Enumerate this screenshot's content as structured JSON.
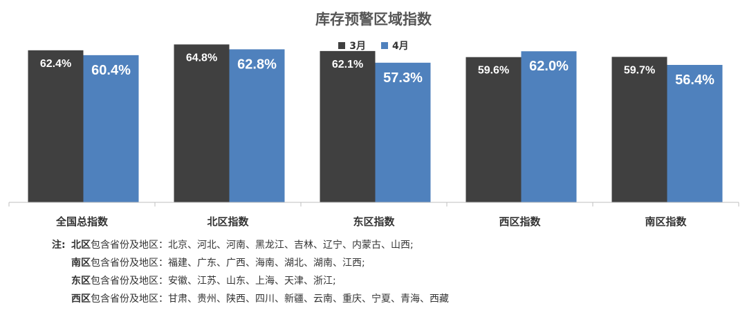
{
  "chart_data": {
    "type": "bar",
    "title": "库存预警区域指数",
    "categories": [
      "全国总指数",
      "北区指数",
      "东区指数",
      "西区指数",
      "南区指数"
    ],
    "series": [
      {
        "name": "3月",
        "values": [
          62.4,
          64.8,
          62.1,
          59.6,
          59.7
        ],
        "labels": [
          "62.4%",
          "64.8%",
          "62.1%",
          "59.6%",
          "59.7%"
        ],
        "color": "#404040"
      },
      {
        "name": "4月",
        "values": [
          60.4,
          62.8,
          57.3,
          62.0,
          56.4
        ],
        "labels": [
          "60.4%",
          "62.8%",
          "57.3%",
          "62.0%",
          "56.4%"
        ],
        "color": "#4F81BD"
      }
    ],
    "ylim": [
      0,
      70
    ],
    "grid": false,
    "legend": "top-center",
    "xlabel": "",
    "ylabel": ""
  },
  "notes": {
    "prefix": "注:",
    "rows": [
      {
        "region": "北区",
        "text": "包含省份及地区：北京、河北、河南、黑龙江、吉林、辽宁、内蒙古、山西;"
      },
      {
        "region": "南区",
        "text": "包含省份及地区：福建、广东、广西、海南、湖北、湖南、江西;"
      },
      {
        "region": "东区",
        "text": "包含省份及地区：安徽、江苏、山东、上海、天津、浙江;"
      },
      {
        "region": "西区",
        "text": "包含省份及地区：甘肃、贵州、陕西、四川、新疆、云南、重庆、宁夏、青海、西藏"
      }
    ]
  }
}
